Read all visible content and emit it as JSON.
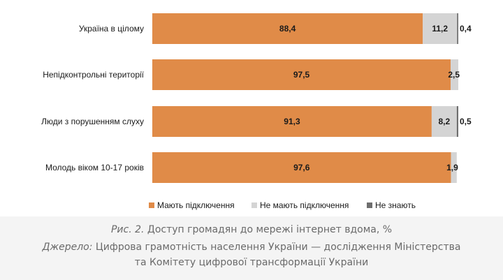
{
  "chart_data": {
    "type": "bar",
    "orientation": "horizontal",
    "stacked": true,
    "categories": [
      "Україна в цілому",
      "Непідконтрольні території",
      "Люди з порушенням слуху",
      "Молодь віком 10-17 років"
    ],
    "series": [
      {
        "name": "Мають підключення",
        "values": [
          88.4,
          97.5,
          91.3,
          97.6
        ],
        "labels": [
          "88,4",
          "97,5",
          "91,3",
          "97,6"
        ]
      },
      {
        "name": "Не мають підключення",
        "values": [
          11.2,
          2.5,
          8.2,
          1.9
        ],
        "labels": [
          "11,2",
          "2,5",
          "8,2",
          "1,9"
        ]
      },
      {
        "name": "Не знають",
        "values": [
          0.4,
          0,
          0.5,
          0
        ],
        "labels": [
          "0,4",
          "",
          "0,5",
          ""
        ]
      }
    ],
    "colors": [
      "#e08b48",
      "#d4d4d4",
      "#6e6e6e"
    ],
    "xlim": [
      0,
      100
    ],
    "grid": false,
    "legend_position": "bottom"
  },
  "caption": {
    "fig_prefix": "Рис. 2.",
    "fig_title": "Доступ громадян до мережі інтернет вдома, %",
    "source_prefix": "Джерело:",
    "source_line1": "Цифрова грамотність населення України — дослідження Міністерства",
    "source_line2": "та Комітету цифрової трансформації України"
  }
}
